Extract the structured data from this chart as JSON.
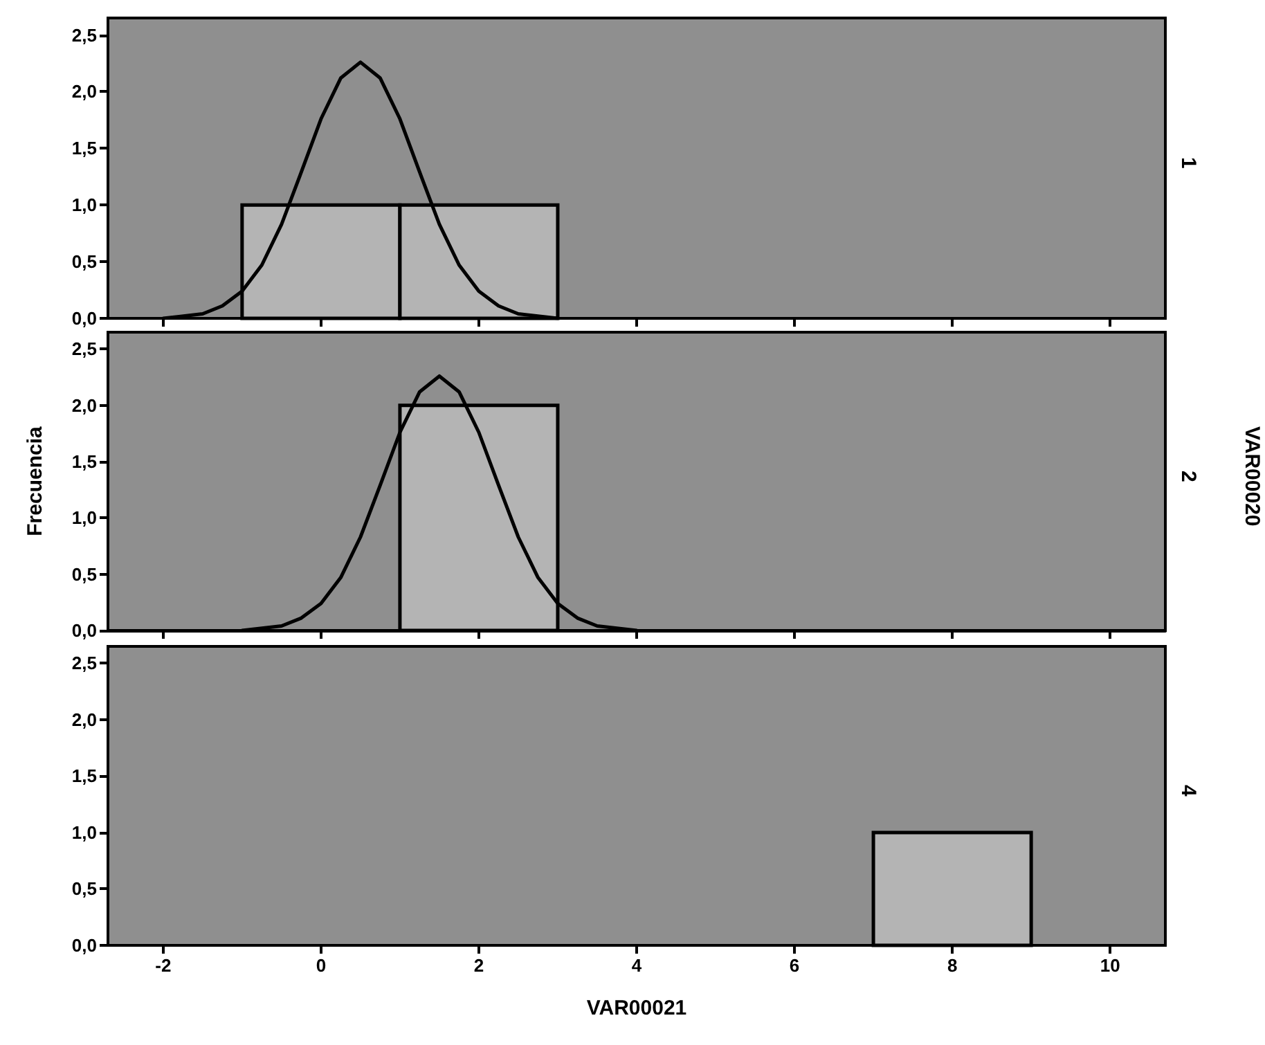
{
  "chart_data": [
    {
      "type": "histogram",
      "annotations": [
        "1"
      ],
      "xlim": [
        -2.7,
        10.7
      ],
      "xticks": [
        -2,
        0,
        2,
        4,
        6,
        8,
        10
      ],
      "ylim": [
        0,
        2.65
      ],
      "yticks": [
        {
          "value": 0,
          "label": "0,0"
        },
        {
          "value": 0.5,
          "label": "0,5"
        },
        {
          "value": 1,
          "label": "1,0"
        },
        {
          "value": 1.5,
          "label": "1,5"
        },
        {
          "value": 2,
          "label": "2,0"
        },
        {
          "value": 2.5,
          "label": "2,5"
        }
      ],
      "tick_labels": "y",
      "color": "#b4b4b4",
      "bins": [
        -1,
        1,
        3
      ],
      "values": [
        1,
        1
      ],
      "series": [
        {
          "type": "line",
          "color": "#000000",
          "x": [
            -2,
            -1.5,
            -1.25,
            -1,
            -0.75,
            -0.5,
            -0.25,
            0,
            0.25,
            0.5,
            0.75,
            1,
            1.25,
            1.5,
            1.75,
            2,
            2.25,
            2.5,
            3
          ],
          "values": [
            0,
            0.04,
            0.11,
            0.24,
            0.47,
            0.83,
            1.29,
            1.76,
            2.12,
            2.26,
            2.12,
            1.76,
            1.29,
            0.83,
            0.47,
            0.24,
            0.11,
            0.04,
            0
          ]
        }
      ]
    },
    {
      "type": "histogram",
      "annotations": [
        "2"
      ],
      "ylabel": "Frecuencia",
      "y2label": "VAR00020",
      "xlim": [
        -2.7,
        10.7
      ],
      "xticks": [
        -2,
        0,
        2,
        4,
        6,
        8,
        10
      ],
      "ylim": [
        0,
        2.65
      ],
      "yticks": [
        {
          "value": 0,
          "label": "0,0"
        },
        {
          "value": 0.5,
          "label": "0,5"
        },
        {
          "value": 1,
          "label": "1,0"
        },
        {
          "value": 1.5,
          "label": "1,5"
        },
        {
          "value": 2,
          "label": "2,0"
        },
        {
          "value": 2.5,
          "label": "2,5"
        }
      ],
      "tick_labels": "y",
      "color": "#b4b4b4",
      "bins": [
        1,
        3
      ],
      "values": [
        2
      ],
      "series": [
        {
          "type": "line",
          "color": "#000000",
          "x": [
            -1,
            -0.5,
            -0.25,
            0,
            0.25,
            0.5,
            0.75,
            1,
            1.25,
            1.5,
            1.75,
            2,
            2.25,
            2.5,
            2.75,
            3,
            3.25,
            3.5,
            4
          ],
          "values": [
            0,
            0.04,
            0.11,
            0.24,
            0.47,
            0.83,
            1.29,
            1.76,
            2.12,
            2.26,
            2.12,
            1.76,
            1.29,
            0.83,
            0.47,
            0.24,
            0.11,
            0.04,
            0
          ]
        }
      ]
    },
    {
      "type": "histogram",
      "annotations": [
        "4"
      ],
      "xlabel": "VAR00021",
      "xlim": [
        -2.7,
        10.7
      ],
      "xticks": [
        -2,
        0,
        2,
        4,
        6,
        8,
        10
      ],
      "ylim": [
        0,
        2.65
      ],
      "yticks": [
        {
          "value": 0,
          "label": "0,0"
        },
        {
          "value": 0.5,
          "label": "0,5"
        },
        {
          "value": 1,
          "label": "1,0"
        },
        {
          "value": 1.5,
          "label": "1,5"
        },
        {
          "value": 2,
          "label": "2,0"
        },
        {
          "value": 2.5,
          "label": "2,5"
        }
      ],
      "color": "#b4b4b4",
      "bins": [
        7,
        9
      ],
      "values": [
        1
      ]
    }
  ]
}
